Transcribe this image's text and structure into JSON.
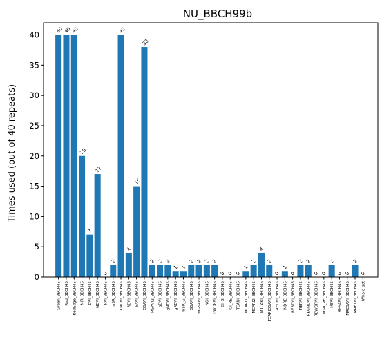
{
  "chart_data": {
    "type": "bar",
    "title": "NU_BBCH99b",
    "xlabel": "",
    "ylabel": "Times used (out of 40 repeats)",
    "ylim": [
      0,
      42
    ],
    "yticks": [
      0,
      5,
      10,
      15,
      20,
      25,
      30,
      35,
      40
    ],
    "grid": false,
    "bar_color": "#1f77b4",
    "categories": [
      "Green_BBCH45",
      "Red_BBCH45",
      "RedEdge_BBCH45",
      "NIR_BBCH45",
      "DVI_BBCH45",
      "NDVI_BBCH45",
      "RVI_BBCH45",
      "mSR_BBCH45",
      "TNDVI_BBCH45",
      "RDVI_BBCH45",
      "SAVI_BBCH45",
      "OSAVI_BBCH45",
      "MSAVI2_BBCH45",
      "gDVI_BBCH45",
      "gNDVI_BBCH45",
      "gRDVI_BBCH45",
      "mSR_G_BBCH45",
      "GSAVI_BBCH45",
      "MGSAVI_BBCH45",
      "NGI_BBCH45",
      "GWDRVI_BBCH45",
      "CI_G_BBCH45",
      "CI_RE_BBCH45",
      "TCARI_BBCH45",
      "MCARI1_BBCH45",
      "MCARI2_BBCH45",
      "MTCARI_BBCH45",
      "TCARIOSAVI_BBCH45",
      "REDVI_BBCH45",
      "NDRE_BBCH45",
      "RERDVI_BBCH45",
      "RERVI_BBCH45",
      "REGNDVI_BBCH45",
      "REWDRVI_BBCH45",
      "MSR_RE_BBCH45",
      "MEVI_BBCH45",
      "RESAVI_BBCH45",
      "MRESAVI_BBCH45",
      "MRETVI_BBCH45",
      "Whole_set"
    ],
    "values": [
      40,
      40,
      40,
      20,
      7,
      17,
      0,
      2,
      40,
      4,
      15,
      38,
      2,
      2,
      2,
      1,
      1,
      2,
      2,
      2,
      2,
      0,
      0,
      0,
      1,
      2,
      4,
      2,
      0,
      1,
      0,
      2,
      2,
      0,
      0,
      2,
      0,
      0,
      2,
      0
    ]
  }
}
